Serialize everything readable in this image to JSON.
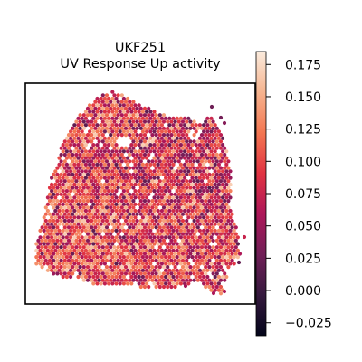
{
  "chart_data": {
    "type": "scatter",
    "plot_kind": "spatial hex-spot map",
    "title_line1": "UKF251",
    "title_line2": "UV Response Up activity",
    "xlabel": "",
    "ylabel": "",
    "axes_ticks": false,
    "colormap": "rocket",
    "colormap_stops": [
      "#03051a",
      "#35193e",
      "#701f57",
      "#ad1759",
      "#e13342",
      "#f37651",
      "#f6b48f",
      "#faebdd"
    ],
    "colorbar": {
      "range": [
        -0.035,
        0.185
      ],
      "ticks": [
        -0.025,
        0.0,
        0.025,
        0.05,
        0.075,
        0.1,
        0.125,
        0.15,
        0.175
      ],
      "tick_labels": [
        "−0.025",
        "0.000",
        "0.025",
        "0.050",
        "0.075",
        "0.100",
        "0.125",
        "0.150",
        "0.175"
      ]
    },
    "value_summary": {
      "typical_range": [
        0.04,
        0.15
      ],
      "predominant": "reddish-orange (~0.08–0.12)",
      "low_pockets": "dark purple spots scattered, mainly upper right",
      "high_pockets": "light salmon spots, mainly left and lower-center"
    },
    "grid": false,
    "legend": "colorbar right"
  }
}
